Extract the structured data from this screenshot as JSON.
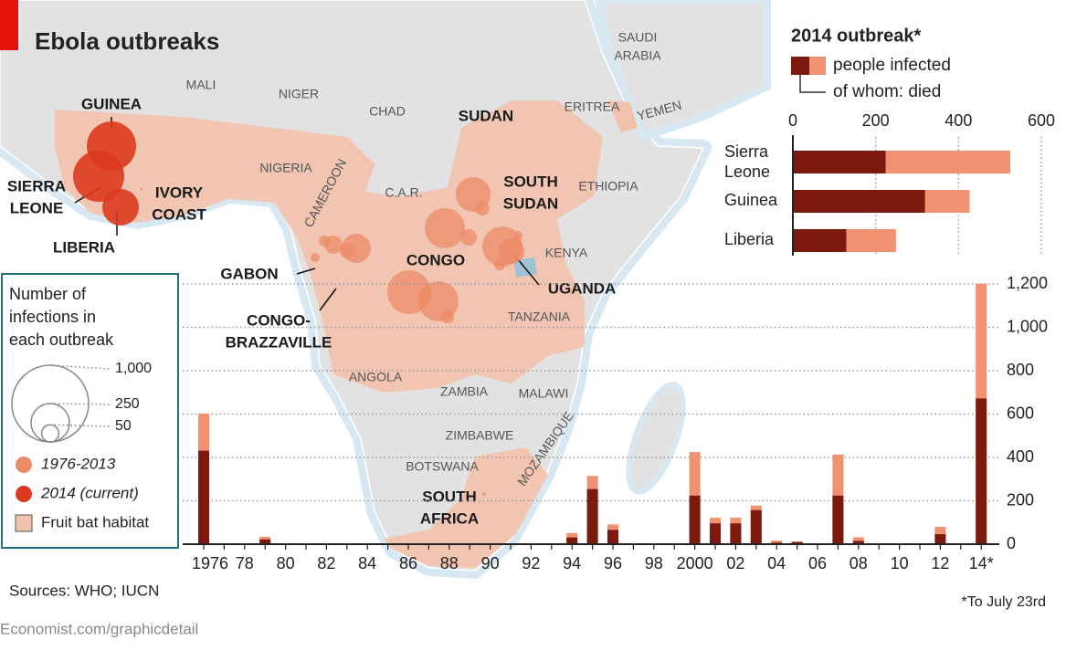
{
  "header": {
    "title": "Ebola outbreaks"
  },
  "map": {
    "country_labels": [
      [
        "MALI"
      ],
      [
        "NIGER"
      ],
      [
        "CHAD"
      ],
      [
        "SAUDI",
        "ARABIA"
      ],
      [
        "ERITREA"
      ],
      [
        "YEMEN"
      ],
      [
        "ETHIOPIA"
      ],
      [
        "C.A.R."
      ],
      [
        "NIGERIA"
      ],
      [
        "CAMEROON"
      ],
      [
        "KENYA"
      ],
      [
        "TANZANIA"
      ],
      [
        "ANGOLA"
      ],
      [
        "ZAMBIA"
      ],
      [
        "MALAWI"
      ],
      [
        "ZIMBABWE"
      ],
      [
        "BOTSWANA"
      ],
      [
        "MOZAMBIQUE"
      ]
    ],
    "outbreak_labels": [
      [
        "GUINEA"
      ],
      [
        "SIERRA",
        "LEONE"
      ],
      [
        "LIBERIA"
      ],
      [
        "IVORY",
        "COAST"
      ],
      [
        "SUDAN"
      ],
      [
        "SOUTH",
        "SUDAN"
      ],
      [
        "GABON"
      ],
      [
        "CONGO-",
        "BRAZZAVILLE"
      ],
      [
        "CONGO"
      ],
      [
        "UGANDA"
      ],
      [
        "SOUTH",
        "AFRICA"
      ]
    ],
    "bubbles": [
      {
        "value": 413,
        "current": true
      },
      {
        "value": 444,
        "current": true
      },
      {
        "value": 227,
        "current": true
      },
      {
        "value": 1,
        "current": false
      },
      {
        "value": 205,
        "current": false
      },
      {
        "value": 36,
        "current": false
      },
      {
        "value": 274,
        "current": false
      },
      {
        "value": 46,
        "current": false
      },
      {
        "value": 145,
        "current": false
      },
      {
        "value": 57,
        "current": false
      },
      {
        "value": 36,
        "current": false
      },
      {
        "value": 20,
        "current": false
      },
      {
        "value": 14,
        "current": false
      },
      {
        "value": 327,
        "current": false
      },
      {
        "value": 274,
        "current": false
      },
      {
        "value": 28,
        "current": false
      },
      {
        "value": 274,
        "current": false
      },
      {
        "value": 111,
        "current": false
      },
      {
        "value": 20,
        "current": false
      },
      {
        "value": 14,
        "current": false
      },
      {
        "value": 2,
        "current": false
      }
    ]
  },
  "bubble_legend": {
    "title": [
      "Number of",
      "infections in",
      "each outbreak"
    ],
    "sizes": [
      {
        "value": 1000,
        "label": "1,000"
      },
      250,
      50
    ],
    "items": [
      {
        "label": "1976-2013",
        "color": "#ec8a66"
      },
      {
        "label": "2014 (current)",
        "color": "#dc3a1e"
      },
      {
        "label": "Fruit bat habitat",
        "color": "#f3c2ad"
      }
    ]
  },
  "chart_data": [
    {
      "type": "hbar",
      "title": "2014 outbreak*",
      "categories": [
        "Sierra Leone",
        "Guinea",
        "Liberia"
      ],
      "series": [
        {
          "name": "people infected",
          "color": "#f09272",
          "values": [
            525,
            427,
            249
          ]
        },
        {
          "name": "of whom: died",
          "color": "#7d1a0f",
          "values": [
            224,
            319,
            129
          ]
        }
      ],
      "xlim": [
        0,
        600
      ],
      "xticks": [
        0,
        200,
        400,
        600
      ],
      "grid": true
    },
    {
      "type": "bar",
      "categories": [
        "1976",
        null,
        "78",
        null,
        "80",
        null,
        "82",
        null,
        "84",
        null,
        "86",
        null,
        "88",
        null,
        "90",
        null,
        "92",
        null,
        "94",
        null,
        "96",
        null,
        "98",
        null,
        "2000",
        null,
        "02",
        null,
        "04",
        null,
        "06",
        null,
        "08",
        null,
        "10",
        null,
        "12",
        null,
        "14*"
      ],
      "series": [
        {
          "color": "#f09272",
          "values": [
            602,
            0,
            0,
            34,
            0,
            0,
            0,
            0,
            0,
            0,
            0,
            0,
            0,
            0,
            0,
            0,
            0,
            0,
            52,
            315,
            91,
            0,
            0,
            0,
            425,
            122,
            122,
            178,
            17,
            12,
            0,
            413,
            32,
            0,
            0,
            0,
            80,
            0,
            1201
          ]
        },
        {
          "color": "#7d1a0f",
          "values": [
            431,
            0,
            0,
            22,
            0,
            0,
            0,
            0,
            0,
            0,
            0,
            0,
            0,
            0,
            0,
            0,
            0,
            0,
            31,
            254,
            66,
            0,
            0,
            0,
            224,
            96,
            96,
            157,
            7,
            10,
            0,
            224,
            15,
            0,
            0,
            0,
            46,
            0,
            672
          ]
        }
      ],
      "ylim": [
        0,
        1200
      ],
      "yticks": [
        0,
        200,
        400,
        600,
        800,
        {
          "value": 1000,
          "label": "1,000"
        },
        {
          "value": 1200,
          "label": "1,200"
        }
      ],
      "grid": true
    }
  ],
  "footer": {
    "sources": "Sources: WHO; IUCN",
    "note": "*To July 23rd",
    "credit": "Economist.com/graphicdetail"
  }
}
